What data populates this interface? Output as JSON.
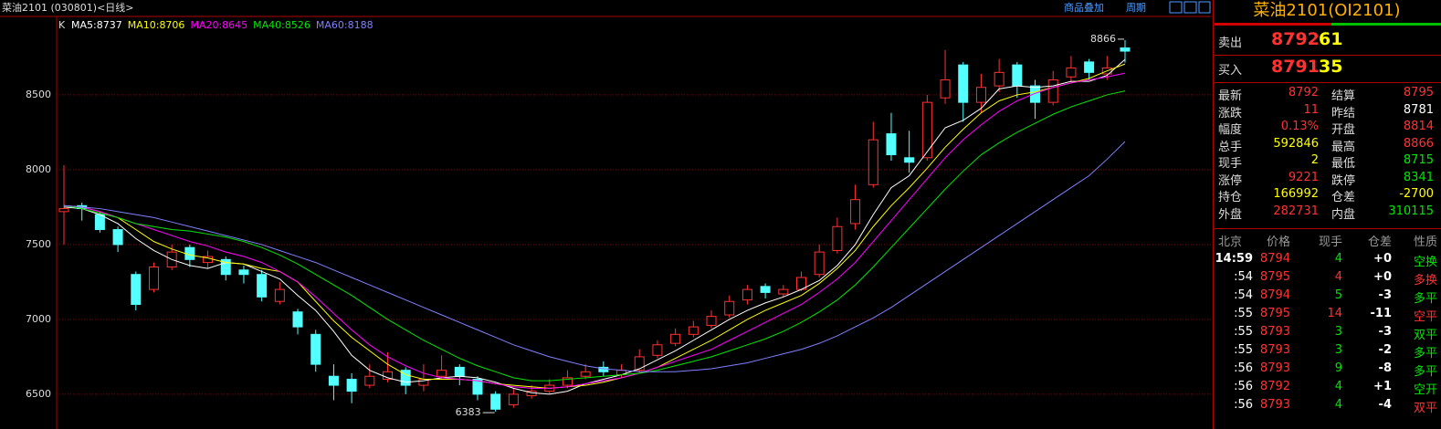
{
  "header": {
    "title": "菜油2101 (030801)<日线>",
    "overlay": "商品叠加",
    "period": "周期"
  },
  "chart_data": {
    "type": "candlestick",
    "kline_label": "K",
    "ylim": [
      6286,
      9024
    ],
    "yticks": [
      6500,
      7000,
      7500,
      8000,
      8500
    ],
    "grid": true,
    "up_color": "#ff3232",
    "down_color": "#54ffff",
    "high_annotation": "8866",
    "low_annotation": "6383",
    "ohlc": [
      [
        7720,
        8030,
        7500,
        7740
      ],
      [
        7760,
        7780,
        7660,
        7740
      ],
      [
        7700,
        7720,
        7580,
        7600
      ],
      [
        7600,
        7620,
        7450,
        7500
      ],
      [
        7300,
        7320,
        7060,
        7100
      ],
      [
        7200,
        7380,
        7180,
        7350
      ],
      [
        7350,
        7500,
        7330,
        7450
      ],
      [
        7480,
        7500,
        7350,
        7400
      ],
      [
        7380,
        7460,
        7340,
        7420
      ],
      [
        7400,
        7420,
        7260,
        7300
      ],
      [
        7330,
        7360,
        7240,
        7300
      ],
      [
        7300,
        7330,
        7120,
        7150
      ],
      [
        7120,
        7250,
        7100,
        7200
      ],
      [
        7050,
        7070,
        6900,
        6950
      ],
      [
        6900,
        6930,
        6650,
        6700
      ],
      [
        6620,
        6700,
        6460,
        6560
      ],
      [
        6600,
        6640,
        6440,
        6520
      ],
      [
        6560,
        6700,
        6540,
        6620
      ],
      [
        6600,
        6780,
        6580,
        6650
      ],
      [
        6660,
        6680,
        6500,
        6560
      ],
      [
        6560,
        6700,
        6520,
        6600
      ],
      [
        6620,
        6760,
        6600,
        6660
      ],
      [
        6680,
        6700,
        6560,
        6620
      ],
      [
        6600,
        6620,
        6460,
        6500
      ],
      [
        6500,
        6520,
        6383,
        6400
      ],
      [
        6430,
        6540,
        6410,
        6500
      ],
      [
        6490,
        6560,
        6470,
        6520
      ],
      [
        6520,
        6600,
        6500,
        6560
      ],
      [
        6560,
        6660,
        6540,
        6610
      ],
      [
        6620,
        6700,
        6600,
        6650
      ],
      [
        6680,
        6720,
        6620,
        6650
      ],
      [
        6630,
        6700,
        6610,
        6660
      ],
      [
        6660,
        6800,
        6640,
        6750
      ],
      [
        6760,
        6860,
        6740,
        6830
      ],
      [
        6840,
        6940,
        6820,
        6900
      ],
      [
        6900,
        6990,
        6880,
        6950
      ],
      [
        6960,
        7060,
        6940,
        7020
      ],
      [
        7030,
        7160,
        7010,
        7120
      ],
      [
        7130,
        7230,
        7100,
        7200
      ],
      [
        7220,
        7240,
        7140,
        7180
      ],
      [
        7170,
        7230,
        7150,
        7200
      ],
      [
        7200,
        7320,
        7190,
        7280
      ],
      [
        7300,
        7500,
        7280,
        7450
      ],
      [
        7460,
        7680,
        7440,
        7620
      ],
      [
        7640,
        7900,
        7600,
        7800
      ],
      [
        7900,
        8320,
        7880,
        8200
      ],
      [
        8240,
        8380,
        8060,
        8100
      ],
      [
        8080,
        8260,
        7980,
        8050
      ],
      [
        8080,
        8500,
        8060,
        8450
      ],
      [
        8480,
        8800,
        8440,
        8600
      ],
      [
        8700,
        8720,
        8320,
        8450
      ],
      [
        8450,
        8640,
        8380,
        8550
      ],
      [
        8560,
        8740,
        8520,
        8650
      ],
      [
        8700,
        8720,
        8480,
        8560
      ],
      [
        8560,
        8600,
        8340,
        8450
      ],
      [
        8450,
        8660,
        8430,
        8600
      ],
      [
        8620,
        8760,
        8580,
        8680
      ],
      [
        8720,
        8740,
        8600,
        8650
      ],
      [
        8640,
        8760,
        8600,
        8680
      ],
      [
        8814,
        8866,
        8715,
        8792
      ]
    ],
    "series": [
      {
        "name": "MA5:8737",
        "color": "#ffffff",
        "values": [
          7750,
          7740,
          7700,
          7640,
          7540,
          7460,
          7400,
          7360,
          7340,
          7380,
          7370,
          7320,
          7270,
          7160,
          7060,
          6920,
          6760,
          6660,
          6610,
          6580,
          6590,
          6610,
          6620,
          6610,
          6580,
          6540,
          6510,
          6500,
          6520,
          6570,
          6600,
          6630,
          6670,
          6730,
          6790,
          6860,
          6930,
          7000,
          7060,
          7110,
          7150,
          7200,
          7260,
          7360,
          7500,
          7700,
          7880,
          7960,
          8120,
          8280,
          8330,
          8410,
          8540,
          8560,
          8550,
          8560,
          8590,
          8590,
          8630,
          8737
        ]
      },
      {
        "name": "MA10:8706",
        "color": "#ffff00",
        "values": [
          7760,
          7750,
          7720,
          7680,
          7600,
          7520,
          7470,
          7430,
          7410,
          7380,
          7370,
          7340,
          7320,
          7250,
          7120,
          6990,
          6880,
          6790,
          6700,
          6630,
          6600,
          6600,
          6600,
          6590,
          6570,
          6560,
          6550,
          6540,
          6550,
          6560,
          6580,
          6610,
          6640,
          6680,
          6740,
          6800,
          6860,
          6930,
          7000,
          7060,
          7110,
          7160,
          7240,
          7340,
          7460,
          7620,
          7760,
          7880,
          8010,
          8150,
          8270,
          8380,
          8460,
          8500,
          8520,
          8550,
          8580,
          8610,
          8660,
          8706
        ]
      },
      {
        "name": "MA20:8645",
        "color": "#ff00ff",
        "values": [
          7760,
          7750,
          7720,
          7680,
          7640,
          7600,
          7560,
          7520,
          7490,
          7450,
          7420,
          7380,
          7320,
          7250,
          7150,
          7040,
          6930,
          6830,
          6750,
          6690,
          6640,
          6610,
          6600,
          6590,
          6570,
          6550,
          6540,
          6540,
          6550,
          6570,
          6590,
          6610,
          6640,
          6680,
          6720,
          6760,
          6800,
          6860,
          6920,
          6980,
          7040,
          7100,
          7180,
          7270,
          7380,
          7520,
          7660,
          7800,
          7940,
          8080,
          8200,
          8300,
          8390,
          8460,
          8510,
          8550,
          8580,
          8600,
          8620,
          8645
        ]
      },
      {
        "name": "MA40:8526",
        "color": "#00e600",
        "values": [
          7760,
          7740,
          7710,
          7680,
          7640,
          7620,
          7600,
          7590,
          7570,
          7550,
          7520,
          7480,
          7430,
          7370,
          7300,
          7230,
          7160,
          7080,
          7000,
          6930,
          6860,
          6800,
          6740,
          6690,
          6650,
          6610,
          6590,
          6590,
          6600,
          6610,
          6620,
          6630,
          6640,
          6660,
          6690,
          6720,
          6750,
          6790,
          6830,
          6870,
          6920,
          6980,
          7050,
          7130,
          7230,
          7350,
          7480,
          7610,
          7740,
          7870,
          7990,
          8100,
          8180,
          8250,
          8310,
          8370,
          8420,
          8460,
          8500,
          8526
        ]
      },
      {
        "name": "MA60:8188",
        "color": "#8080ff",
        "values": [
          7760,
          7750,
          7740,
          7720,
          7700,
          7680,
          7650,
          7620,
          7590,
          7560,
          7530,
          7500,
          7460,
          7420,
          7380,
          7330,
          7280,
          7230,
          7180,
          7130,
          7080,
          7030,
          6980,
          6930,
          6880,
          6830,
          6790,
          6750,
          6720,
          6690,
          6670,
          6660,
          6650,
          6650,
          6650,
          6660,
          6670,
          6690,
          6710,
          6740,
          6770,
          6800,
          6840,
          6890,
          6950,
          7010,
          7080,
          7160,
          7240,
          7320,
          7400,
          7480,
          7560,
          7640,
          7720,
          7800,
          7880,
          7960,
          8070,
          8188
        ]
      }
    ]
  },
  "panel": {
    "title": "菜油2101(OI2101)",
    "sell": {
      "label": "卖出",
      "price": "8792",
      "qty": "61"
    },
    "buy": {
      "label": "买入",
      "price": "8791",
      "qty": "35"
    },
    "stats": [
      [
        {
          "label": "最新",
          "value": "8792",
          "color": "#ff3232"
        },
        {
          "label": "结算",
          "value": "8795",
          "color": "#ff3232"
        }
      ],
      [
        {
          "label": "涨跌",
          "value": "11",
          "color": "#ff3232"
        },
        {
          "label": "昨结",
          "value": "8781",
          "color": "#ffffff"
        }
      ],
      [
        {
          "label": "幅度",
          "value": "0.13%",
          "color": "#ff3232"
        },
        {
          "label": "开盘",
          "value": "8814",
          "color": "#ff3232"
        }
      ],
      [
        {
          "label": "总手",
          "value": "592846",
          "color": "#ffff00"
        },
        {
          "label": "最高",
          "value": "8866",
          "color": "#ff3232"
        }
      ],
      [
        {
          "label": "现手",
          "value": "2",
          "color": "#ffff00"
        },
        {
          "label": "最低",
          "value": "8715",
          "color": "#00e600"
        }
      ],
      [
        {
          "label": "涨停",
          "value": "9221",
          "color": "#ff3232"
        },
        {
          "label": "跌停",
          "value": "8341",
          "color": "#00e600"
        }
      ],
      [
        {
          "label": "持仓",
          "value": "166992",
          "color": "#ffff00"
        },
        {
          "label": "仓差",
          "value": "-2700",
          "color": "#ffff00"
        }
      ],
      [
        {
          "label": "外盘",
          "value": "282731",
          "color": "#ff3232"
        },
        {
          "label": "内盘",
          "value": "310115",
          "color": "#00e600"
        }
      ]
    ],
    "trade_header": [
      "北京",
      "价格",
      "现手",
      "仓差",
      "性质"
    ],
    "trades": [
      {
        "time": "14:59",
        "price": "8794",
        "vol": "4",
        "oi": "+0",
        "nature": "空换",
        "vol_color": "#00e600",
        "nature_color": "#00e600"
      },
      {
        "time": ":54",
        "price": "8795",
        "vol": "4",
        "oi": "+0",
        "nature": "多换",
        "vol_color": "#ff3232",
        "nature_color": "#ff3232"
      },
      {
        "time": ":54",
        "price": "8794",
        "vol": "5",
        "oi": "-3",
        "nature": "多平",
        "vol_color": "#00e600",
        "nature_color": "#00e600"
      },
      {
        "time": ":55",
        "price": "8795",
        "vol": "14",
        "oi": "-11",
        "nature": "空平",
        "vol_color": "#ff3232",
        "nature_color": "#ff3232"
      },
      {
        "time": ":55",
        "price": "8793",
        "vol": "3",
        "oi": "-3",
        "nature": "双平",
        "vol_color": "#00e600",
        "nature_color": "#00e600"
      },
      {
        "time": ":55",
        "price": "8793",
        "vol": "3",
        "oi": "-2",
        "nature": "多平",
        "vol_color": "#00e600",
        "nature_color": "#00e600"
      },
      {
        "time": ":56",
        "price": "8793",
        "vol": "9",
        "oi": "-8",
        "nature": "多平",
        "vol_color": "#00e600",
        "nature_color": "#00e600"
      },
      {
        "time": ":56",
        "price": "8792",
        "vol": "4",
        "oi": "+1",
        "nature": "空开",
        "vol_color": "#00e600",
        "nature_color": "#00e600"
      },
      {
        "time": ":56",
        "price": "8793",
        "vol": "4",
        "oi": "-4",
        "nature": "双平",
        "vol_color": "#00e600",
        "nature_color": "#ff3232"
      }
    ]
  }
}
